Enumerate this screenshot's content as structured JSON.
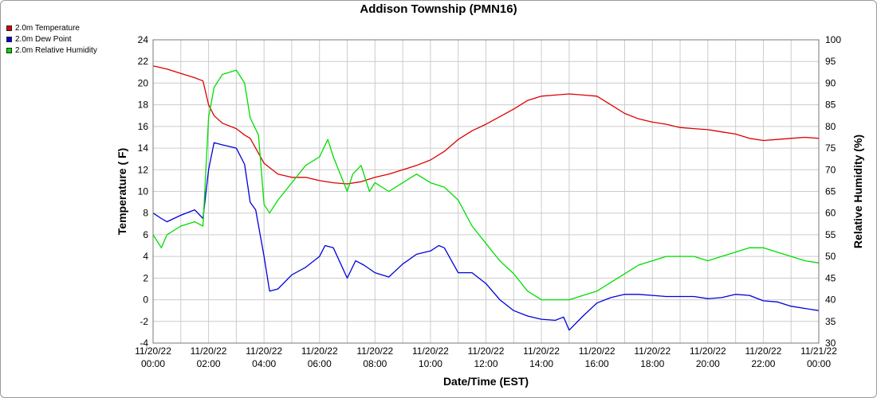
{
  "chart_data": {
    "type": "line",
    "title": "Addison Township (PMN16)",
    "xlabel": "Date/Time (EST)",
    "ylabel_left": "Temperature ( F)",
    "ylabel_right": "Relative Humidity (%)",
    "ylim_left": [
      -4,
      24
    ],
    "ylim_right": [
      30,
      100
    ],
    "grid": true,
    "legend_position": "top-left",
    "x_ticks": [
      {
        "date": "11/20/22",
        "time": "00:00"
      },
      {
        "date": "11/20/22",
        "time": "02:00"
      },
      {
        "date": "11/20/22",
        "time": "04:00"
      },
      {
        "date": "11/20/22",
        "time": "06:00"
      },
      {
        "date": "11/20/22",
        "time": "08:00"
      },
      {
        "date": "11/20/22",
        "time": "10:00"
      },
      {
        "date": "11/20/22",
        "time": "12:00"
      },
      {
        "date": "11/20/22",
        "time": "14:00"
      },
      {
        "date": "11/20/22",
        "time": "16:00"
      },
      {
        "date": "11/20/22",
        "time": "18:00"
      },
      {
        "date": "11/20/22",
        "time": "20:00"
      },
      {
        "date": "11/20/22",
        "time": "22:00"
      },
      {
        "date": "11/21/22",
        "time": "00:00"
      }
    ],
    "y_ticks_left": [
      "24",
      "22",
      "20",
      "18",
      "16",
      "14",
      "12",
      "10",
      "8",
      "6",
      "4",
      "2",
      "0",
      "-2",
      "-4"
    ],
    "y_ticks_right": [
      "100",
      "95",
      "90",
      "85",
      "80",
      "75",
      "70",
      "65",
      "60",
      "55",
      "50",
      "45",
      "40",
      "35",
      "30"
    ],
    "x_unit": "hours since 11/20/22 00:00",
    "series": [
      {
        "name": "2.0m Temperature",
        "color": "#dd0000",
        "axis": "left",
        "x": [
          0,
          0.5,
          1.0,
          1.5,
          1.8,
          2.0,
          2.2,
          2.5,
          3.0,
          3.3,
          3.5,
          4.0,
          4.5,
          5.0,
          5.5,
          6.0,
          6.5,
          7.0,
          7.5,
          8.0,
          8.5,
          9.0,
          9.5,
          10.0,
          10.5,
          11.0,
          11.5,
          12.0,
          12.5,
          13.0,
          13.5,
          14.0,
          14.5,
          15.0,
          15.5,
          16.0,
          16.5,
          17.0,
          17.5,
          18.0,
          18.5,
          19.0,
          19.5,
          20.0,
          20.5,
          21.0,
          21.5,
          22.0,
          22.5,
          23.0,
          23.5,
          24.0
        ],
        "y": [
          21.6,
          21.3,
          20.9,
          20.5,
          20.2,
          18.0,
          17.0,
          16.3,
          15.8,
          15.2,
          14.9,
          12.6,
          11.6,
          11.3,
          11.3,
          11.0,
          10.8,
          10.7,
          10.9,
          11.3,
          11.6,
          12.0,
          12.4,
          12.9,
          13.7,
          14.8,
          15.6,
          16.2,
          16.9,
          17.6,
          18.4,
          18.8,
          18.9,
          19.0,
          18.9,
          18.8,
          18.0,
          17.2,
          16.7,
          16.4,
          16.2,
          15.9,
          15.8,
          15.7,
          15.5,
          15.3,
          14.9,
          14.7,
          14.8,
          14.9,
          15.0,
          14.9
        ]
      },
      {
        "name": "2.0m Dew Point",
        "color": "#0000dd",
        "axis": "left",
        "x": [
          0,
          0.3,
          0.5,
          1.0,
          1.5,
          1.8,
          2.0,
          2.2,
          2.5,
          3.0,
          3.3,
          3.5,
          3.7,
          4.0,
          4.2,
          4.5,
          5.0,
          5.5,
          6.0,
          6.2,
          6.5,
          7.0,
          7.3,
          7.6,
          8.0,
          8.5,
          9.0,
          9.5,
          10.0,
          10.3,
          10.5,
          11.0,
          11.5,
          12.0,
          12.5,
          13.0,
          13.5,
          14.0,
          14.5,
          14.8,
          15.0,
          15.5,
          16.0,
          16.5,
          17.0,
          17.5,
          18.0,
          18.5,
          19.0,
          19.5,
          20.0,
          20.5,
          21.0,
          21.5,
          22.0,
          22.5,
          23.0,
          23.5,
          24.0
        ],
        "y": [
          8.0,
          7.5,
          7.2,
          7.8,
          8.3,
          7.5,
          12.0,
          14.5,
          14.3,
          14.0,
          12.5,
          9.0,
          8.3,
          4.0,
          0.8,
          1.0,
          2.3,
          3.0,
          4.0,
          5.0,
          4.8,
          2.0,
          3.6,
          3.2,
          2.5,
          2.1,
          3.3,
          4.2,
          4.5,
          5.0,
          4.8,
          2.5,
          2.5,
          1.5,
          0.0,
          -1.0,
          -1.5,
          -1.8,
          -1.9,
          -1.6,
          -2.8,
          -1.5,
          -0.3,
          0.2,
          0.5,
          0.5,
          0.4,
          0.3,
          0.3,
          0.3,
          0.1,
          0.2,
          0.5,
          0.4,
          -0.1,
          -0.2,
          -0.6,
          -0.8,
          -1.0
        ]
      },
      {
        "name": "2.0m Relative Humidity",
        "color": "#00dd00",
        "axis": "right",
        "x": [
          0,
          0.3,
          0.5,
          1.0,
          1.5,
          1.8,
          2.0,
          2.2,
          2.5,
          3.0,
          3.3,
          3.5,
          3.8,
          4.0,
          4.2,
          4.5,
          5.0,
          5.5,
          6.0,
          6.3,
          6.5,
          7.0,
          7.2,
          7.5,
          7.8,
          8.0,
          8.5,
          9.0,
          9.5,
          10.0,
          10.5,
          11.0,
          11.5,
          12.0,
          12.5,
          13.0,
          13.5,
          14.0,
          14.5,
          15.0,
          15.5,
          16.0,
          16.5,
          17.0,
          17.5,
          18.0,
          18.5,
          19.0,
          19.5,
          20.0,
          20.5,
          21.0,
          21.5,
          22.0,
          22.5,
          23.0,
          23.5,
          24.0
        ],
        "y": [
          55,
          52,
          55,
          57,
          58,
          57,
          82,
          89,
          92,
          93,
          90,
          82,
          78,
          62,
          60,
          63,
          67,
          71,
          73,
          77,
          73,
          65,
          69,
          71,
          65,
          67,
          65,
          67,
          69,
          67,
          66,
          63,
          57,
          53,
          49,
          46,
          42,
          40,
          40,
          40,
          41,
          42,
          44,
          46,
          48,
          49,
          50,
          50,
          50,
          49,
          50,
          51,
          52,
          52,
          51,
          50,
          49,
          48.5
        ]
      }
    ]
  }
}
